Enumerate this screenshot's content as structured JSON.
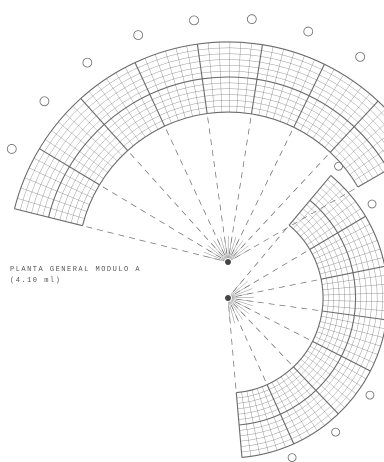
{
  "drawing": {
    "title": "PLANTA GENERAL MODULO A",
    "subtitle": "(4.10 ml)",
    "line_color": "#6a6a6a",
    "bubble_count": 11
  }
}
